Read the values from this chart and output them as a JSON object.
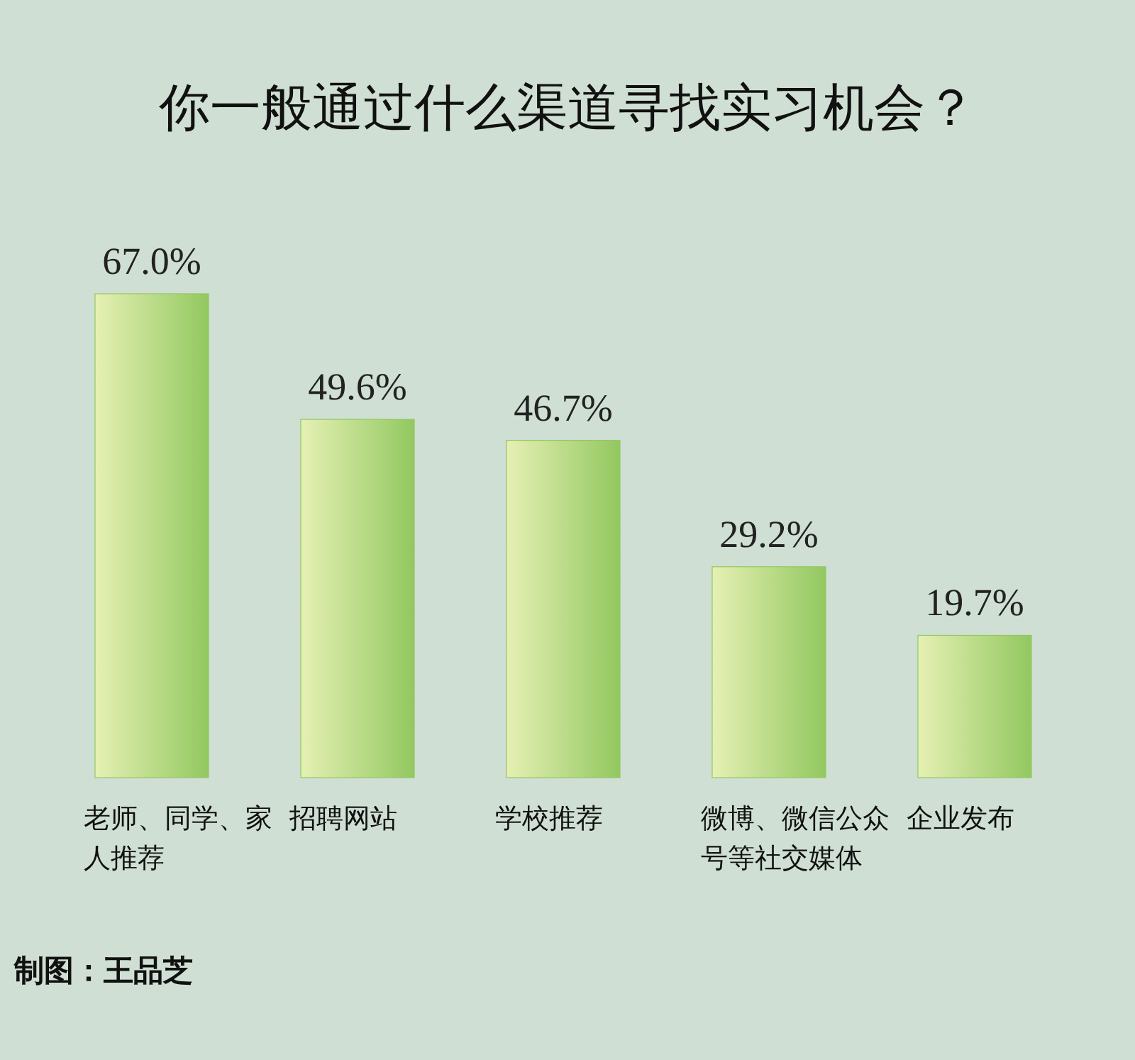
{
  "chart_data": {
    "type": "bar",
    "title": "你一般通过什么渠道寻找实习机会？",
    "categories": [
      "老师、同学、家人推荐",
      "招聘网站",
      "学校推荐",
      "微博、微信公众号等社交媒体",
      "企业发布"
    ],
    "values": [
      67.0,
      49.6,
      46.7,
      29.2,
      19.7
    ],
    "value_labels": [
      "67.0%",
      "49.6%",
      "46.7%",
      "29.2%",
      "19.7%"
    ],
    "color": "#92c860",
    "relative": false,
    "annotations": [
      "制图：王品芝"
    ]
  }
}
